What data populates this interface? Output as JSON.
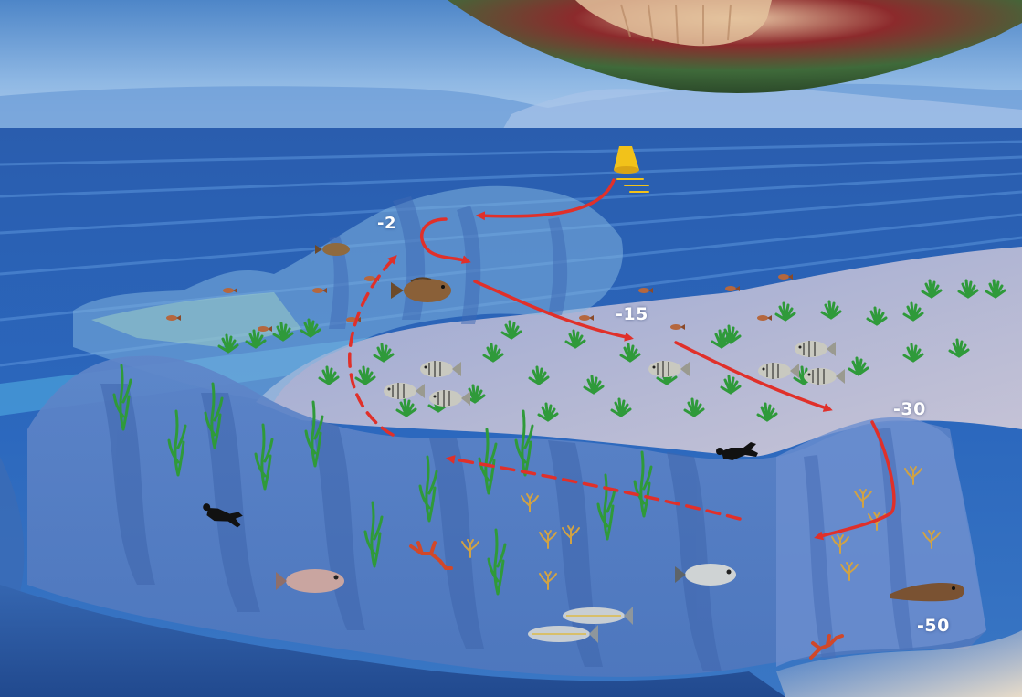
{
  "depth_labels": {
    "d2": "-2",
    "d15": "-15",
    "d30": "-30",
    "d50": "-50"
  },
  "colors": {
    "route": "#e0302a",
    "seagrass": "#2f9a3a",
    "sea_surface": "#2b66b8",
    "seabed": "#8f9fc8"
  }
}
